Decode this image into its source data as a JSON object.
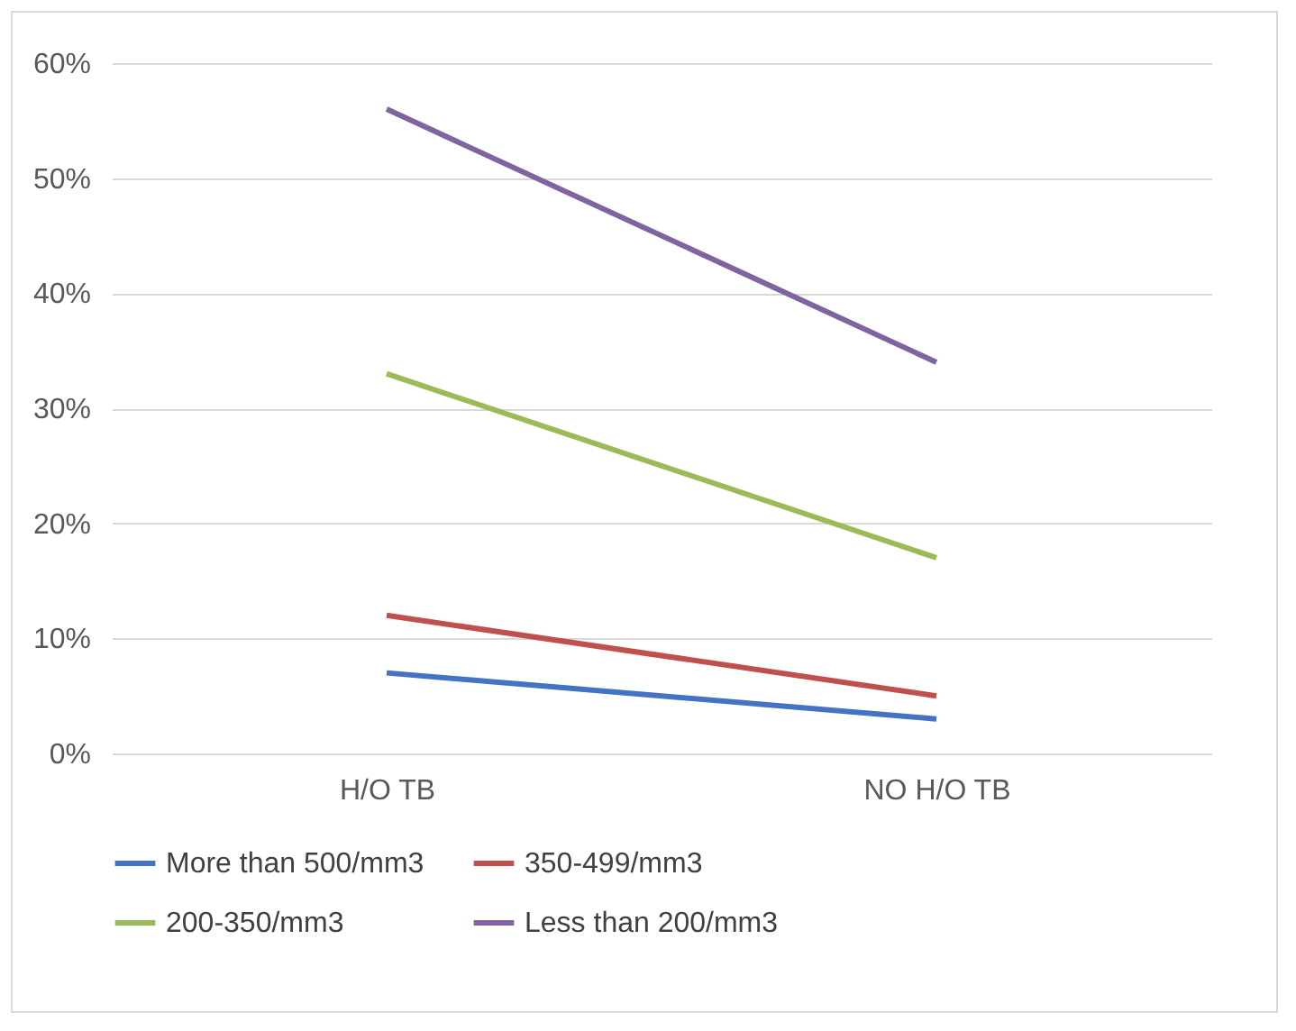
{
  "chart_data": {
    "type": "line",
    "categories": [
      "H/O TB",
      "NO H/O TB"
    ],
    "series": [
      {
        "name": "More than 500/mm3",
        "color": "#4472c4",
        "values": [
          7,
          3
        ]
      },
      {
        "name": "350-499/mm3",
        "color": "#c0504d",
        "values": [
          12,
          5
        ]
      },
      {
        "name": "200-350/mm3",
        "color": "#9bbb59",
        "values": [
          33,
          17
        ]
      },
      {
        "name": "Less than 200/mm3",
        "color": "#8064a2",
        "values": [
          56,
          34
        ]
      }
    ],
    "ylim": [
      0,
      60
    ],
    "yticks": [
      {
        "value": 0,
        "label": "0%"
      },
      {
        "value": 10,
        "label": "10%"
      },
      {
        "value": 20,
        "label": "20%"
      },
      {
        "value": 30,
        "label": "30%"
      },
      {
        "value": 40,
        "label": "40%"
      },
      {
        "value": 50,
        "label": "50%"
      },
      {
        "value": 60,
        "label": "60%"
      }
    ],
    "grid": "y",
    "legend": "bottom",
    "marker": "none",
    "line_style": "solid"
  }
}
